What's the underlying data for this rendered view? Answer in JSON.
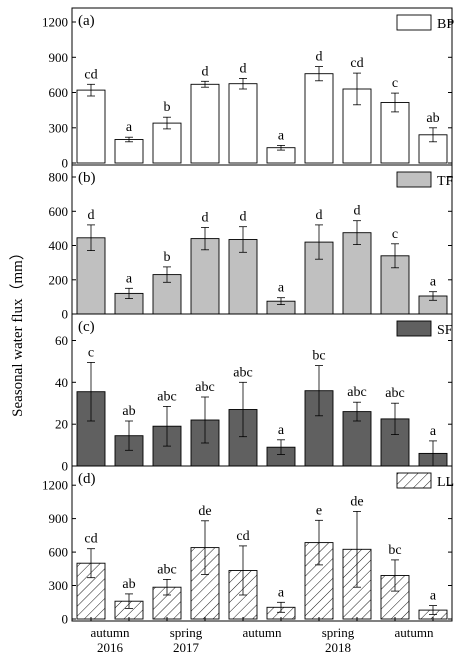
{
  "chart_data": {
    "type": "bar",
    "ylabel": "Seasonal water flux（mm）",
    "x_tick_labels": [
      {
        "line1": "autumn",
        "line2": "2016"
      },
      {
        "line1": "spring",
        "line2": "2017"
      },
      {
        "line1": "autumn",
        "line2": ""
      },
      {
        "line1": "spring",
        "line2": "2018"
      },
      {
        "line1": "autumn",
        "line2": ""
      }
    ],
    "colors": {
      "BP": "#ffffff",
      "TF": "#c0c0c0",
      "SF": "#606060",
      "LL": "hatch"
    },
    "panels": [
      {
        "panel_label": "(a)",
        "legend": "BP",
        "fill": "white",
        "ylim": [
          0,
          1200
        ],
        "yticks": [
          0,
          300,
          600,
          900,
          1200
        ],
        "values": [
          620,
          200,
          340,
          670,
          675,
          130,
          760,
          630,
          515,
          240
        ],
        "errors": [
          50,
          20,
          50,
          25,
          45,
          20,
          60,
          135,
          80,
          60
        ],
        "sig": [
          "cd",
          "a",
          "b",
          "d",
          "d",
          "a",
          "d",
          "cd",
          "c",
          "ab"
        ]
      },
      {
        "panel_label": "(b)",
        "legend": "TF",
        "fill": "lightgray",
        "ylim": [
          0,
          800
        ],
        "yticks": [
          0,
          200,
          400,
          600,
          800
        ],
        "values": [
          445,
          120,
          230,
          440,
          435,
          75,
          420,
          475,
          340,
          105
        ],
        "errors": [
          75,
          30,
          45,
          65,
          75,
          20,
          100,
          70,
          70,
          25
        ],
        "sig": [
          "d",
          "a",
          "b",
          "d",
          "d",
          "a",
          "d",
          "d",
          "c",
          "a"
        ]
      },
      {
        "panel_label": "(c)",
        "legend": "SF",
        "fill": "darkgray",
        "ylim": [
          0,
          65
        ],
        "yticks": [
          0,
          20,
          40,
          60
        ],
        "values": [
          35.5,
          14.5,
          19,
          22,
          27,
          9,
          36,
          26,
          22.5,
          6
        ],
        "errors": [
          14,
          7,
          9.5,
          11,
          13,
          3.5,
          12,
          4.5,
          7.5,
          6
        ],
        "sig": [
          "c",
          "ab",
          "abc",
          "abc",
          "abc",
          "a",
          "bc",
          "abc",
          "abc",
          "a"
        ]
      },
      {
        "panel_label": "(d)",
        "legend": "LL",
        "fill": "hatch",
        "ylim": [
          0,
          1300
        ],
        "yticks": [
          0,
          300,
          600,
          900,
          1200
        ],
        "values": [
          500,
          160,
          285,
          640,
          435,
          105,
          685,
          625,
          390,
          80
        ],
        "errors": [
          130,
          65,
          70,
          240,
          220,
          45,
          200,
          340,
          140,
          40
        ],
        "sig": [
          "cd",
          "ab",
          "abc",
          "de",
          "cd",
          "a",
          "e",
          "de",
          "bc",
          "a"
        ]
      }
    ]
  }
}
